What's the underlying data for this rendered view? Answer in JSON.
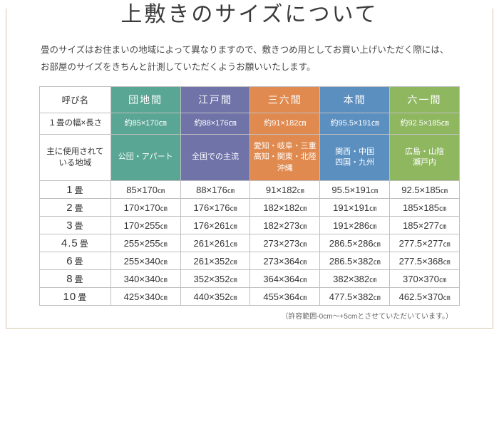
{
  "title": "上敷きのサイズについて",
  "description": "畳のサイズはお住まいの地域によって異なりますので、敷きつめ用としてお買い上げいただく際には、\nお部屋のサイズをきちんと計測していただくようお願いいたします。",
  "headers": {
    "name": "呼び名",
    "cols": [
      {
        "label": "団地間",
        "color": "#5aa694"
      },
      {
        "label": "江戸間",
        "color": "#6f73a8"
      },
      {
        "label": "三六間",
        "color": "#e08a4f"
      },
      {
        "label": "本間",
        "color": "#5b8fc0"
      },
      {
        "label": "六一間",
        "color": "#8fb760"
      }
    ]
  },
  "subrows": {
    "dim_label": "１畳の幅×長さ",
    "dims": [
      "約85×170㎝",
      "約88×176㎝",
      "約91×182㎝",
      "約95.5×191㎝",
      "約92.5×185㎝"
    ],
    "region_label": "主に使用されて\nいる地域",
    "regions": [
      "公団・アパート",
      "全国での主流",
      "愛知・岐阜・三重\n高知・関東・北陸\n沖縄",
      "関西・中国\n四国・九州",
      "広島・山陰\n瀬戸内"
    ]
  },
  "sizes": [
    {
      "tatami": "1",
      "vals": [
        "85×170",
        "88×176",
        "91×182",
        "95.5×191",
        "92.5×185"
      ]
    },
    {
      "tatami": "2",
      "vals": [
        "170×170",
        "176×176",
        "182×182",
        "191×191",
        "185×185"
      ]
    },
    {
      "tatami": "3",
      "vals": [
        "170×255",
        "176×261",
        "182×273",
        "191×286",
        "185×277"
      ]
    },
    {
      "tatami": "4.5",
      "vals": [
        "255×255",
        "261×261",
        "273×273",
        "286.5×286",
        "277.5×277"
      ]
    },
    {
      "tatami": "6",
      "vals": [
        "255×340",
        "261×352",
        "273×364",
        "286.5×382",
        "277.5×368"
      ]
    },
    {
      "tatami": "8",
      "vals": [
        "340×340",
        "352×352",
        "364×364",
        "382×382",
        "370×370"
      ]
    },
    {
      "tatami": "10",
      "vals": [
        "425×340",
        "440×352",
        "455×364",
        "477.5×382",
        "462.5×370"
      ]
    }
  ],
  "unit_tatami": "畳",
  "unit_cm": "㎝",
  "note": "（許容範囲-0cm～+5cmとさせていただいています。）"
}
